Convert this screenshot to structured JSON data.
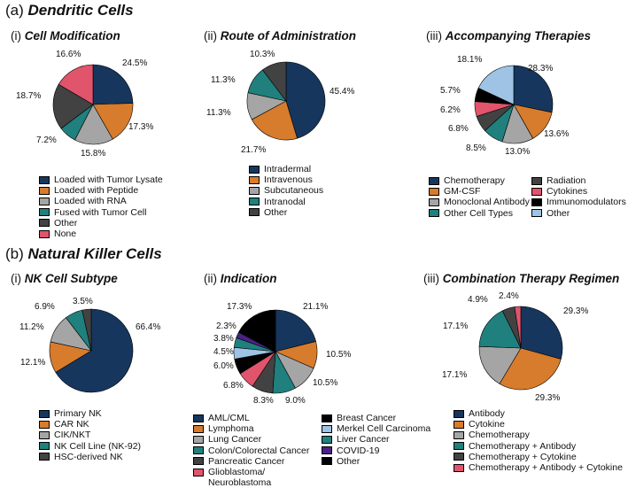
{
  "colors": {
    "navy": "#16365d",
    "orange": "#d77b2c",
    "gray": "#a5a5a5",
    "teal": "#20807d",
    "darkgray": "#424242",
    "pink": "#e0546c",
    "black": "#000000",
    "lightblue": "#9ec3e5",
    "purple": "#4a2185"
  },
  "sections": {
    "a": {
      "letter": "(a)",
      "title": "Dendritic Cells"
    },
    "b": {
      "letter": "(b)",
      "title": "Natural Killer Cells"
    }
  },
  "chart_data": [
    {
      "type": "pie",
      "panel": "(i)",
      "title": "Cell Modification",
      "categories": [
        "Loaded with Tumor Lysate",
        "Loaded with Peptide",
        "Loaded with RNA",
        "Fused with Tumor Cell",
        "Other",
        "None"
      ],
      "values": [
        24.5,
        17.3,
        15.8,
        7.2,
        18.7,
        16.6
      ],
      "labels": [
        "24.5%",
        "17.3%",
        "15.8%",
        "7.2%",
        "18.7%",
        "16.6%"
      ],
      "colors": [
        "navy",
        "orange",
        "gray",
        "teal",
        "darkgray",
        "pink"
      ]
    },
    {
      "type": "pie",
      "panel": "(ii)",
      "title": "Route of Administration",
      "categories": [
        "Intradermal",
        "Intravenous",
        "Subcutaneous",
        "Intranodal",
        "Other"
      ],
      "values": [
        45.4,
        21.7,
        11.3,
        11.3,
        10.3
      ],
      "labels": [
        "45.4%",
        "21.7%",
        "11.3%",
        "11.3%",
        "10.3%"
      ],
      "colors": [
        "navy",
        "orange",
        "gray",
        "teal",
        "darkgray"
      ]
    },
    {
      "type": "pie",
      "panel": "(iii)",
      "title": "Accompanying Therapies",
      "categories": [
        "Chemotherapy",
        "GM-CSF",
        "Monoclonal Antibody",
        "Other Cell Types",
        "Radiation",
        "Cytokines",
        "Immunomodulators",
        "Other"
      ],
      "values": [
        28.3,
        13.6,
        13.0,
        8.5,
        6.8,
        6.2,
        5.7,
        18.1
      ],
      "labels": [
        "28.3%",
        "13.6%",
        "13.0%",
        "8.5%",
        "6.8%",
        "6.2%",
        "5.7%",
        "18.1%"
      ],
      "colors": [
        "navy",
        "orange",
        "gray",
        "teal",
        "darkgray",
        "pink",
        "black",
        "lightblue"
      ]
    },
    {
      "type": "pie",
      "panel": "(i)",
      "title": "NK Cell Subtype",
      "categories": [
        "Primary NK",
        "CAR NK",
        "CIK/NKT",
        "NK Cell Line (NK-92)",
        "HSC-derived NK"
      ],
      "values": [
        66.4,
        12.1,
        11.2,
        6.9,
        3.5
      ],
      "labels": [
        "66.4%",
        "12.1%",
        "11.2%",
        "6.9%",
        "3.5%"
      ],
      "colors": [
        "navy",
        "orange",
        "gray",
        "teal",
        "darkgray"
      ]
    },
    {
      "type": "pie",
      "panel": "(ii)",
      "title": "Indication",
      "categories": [
        "AML/CML",
        "Lymphoma",
        "Lung Cancer",
        "Colon/Colorectal Cancer",
        "Pancreatic Cancer",
        "Glioblastoma/ Neuroblastoma",
        "Breast Cancer",
        "Merkel Cell Carcinoma",
        "Liver Cancer",
        "COVID-19",
        "Other"
      ],
      "values": [
        21.1,
        10.5,
        10.5,
        9.0,
        8.3,
        6.8,
        6.0,
        4.5,
        3.8,
        2.3,
        17.3
      ],
      "labels": [
        "21.1%",
        "10.5%",
        "10.5%",
        "9.0%",
        "8.3%",
        "6.8%",
        "6.0%",
        "4.5%",
        "3.8%",
        "2.3%",
        "17.3%"
      ],
      "colors": [
        "navy",
        "orange",
        "gray",
        "teal",
        "darkgray",
        "pink",
        "black",
        "lightblue",
        "teal",
        "purple",
        "black"
      ]
    },
    {
      "type": "pie",
      "panel": "(iii)",
      "title": "Combination Therapy Regimen",
      "categories": [
        "Antibody",
        "Cytokine",
        "Chemotherapy",
        "Chemotherapy + Antibody",
        "Chemotherapy + Cytokine",
        "Chemotherapy + Antibody + Cytokine"
      ],
      "values": [
        29.3,
        29.3,
        17.1,
        17.1,
        4.9,
        2.4
      ],
      "labels": [
        "29.3%",
        "29.3%",
        "17.1%",
        "17.1%",
        "4.9%",
        "2.4%"
      ],
      "colors": [
        "navy",
        "orange",
        "gray",
        "teal",
        "darkgray",
        "pink"
      ]
    }
  ]
}
